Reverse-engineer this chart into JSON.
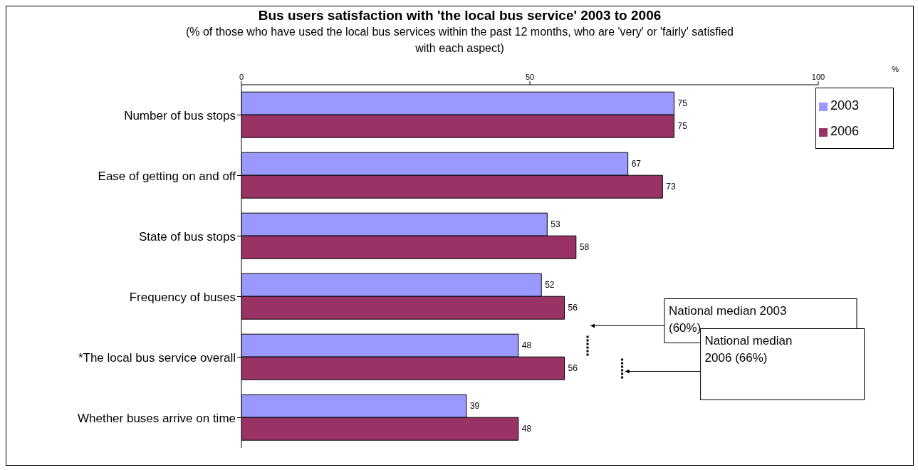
{
  "chart_data": {
    "type": "bar",
    "orientation": "horizontal",
    "title": "Bus users satisfaction with 'the local bus service' 2003 to 2006",
    "subtitle": "(% of those who have used  the local bus services within the past 12 months, who are 'very' or 'fairly' satisfied with each aspect)",
    "categories": [
      "Number of bus stops",
      "Ease of getting on and off",
      "State of bus stops",
      "Frequency of buses",
      "*The local bus service overall",
      "Whether buses arrive on time"
    ],
    "series": [
      {
        "name": "2003",
        "color": "#9999ff",
        "values": [
          75,
          67,
          53,
          52,
          48,
          39
        ]
      },
      {
        "name": "2006",
        "color": "#993366",
        "values": [
          75,
          73,
          58,
          56,
          56,
          48
        ]
      }
    ],
    "xlim": [
      0,
      100
    ],
    "xticks": [
      0,
      50,
      100
    ],
    "grid": false,
    "legend": "top right",
    "data_labels": true,
    "annotations": [
      "%",
      "National median 2003 (60%)",
      "National median 2006 (66%)"
    ]
  }
}
